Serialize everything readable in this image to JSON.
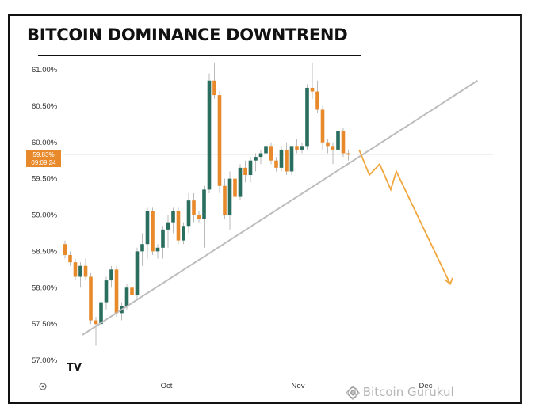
{
  "title": "BITCOIN DOMINANCE DOWNTREND",
  "watermark": "@ Bitcoin Gurukul",
  "logo": "TV",
  "price_badge": {
    "value": "59.83%",
    "countdown": "09:09:24"
  },
  "colors": {
    "up": "#2a6e5f",
    "down": "#e88a2b",
    "trendline": "#bdbdbd",
    "projection": "#f0a63c"
  },
  "chart_data": {
    "type": "candlestick",
    "y_ticks": [
      "61.00%",
      "60.50%",
      "60.00%",
      "59.50%",
      "59.00%",
      "58.50%",
      "58.00%",
      "57.50%",
      "57.00%"
    ],
    "y_tick_values": [
      61.0,
      60.5,
      60.0,
      59.5,
      59.0,
      58.5,
      58.0,
      57.5,
      57.0
    ],
    "x_ticks": [
      "Oct",
      "Nov",
      "Dec"
    ],
    "ylim": [
      56.9,
      61.15
    ],
    "candles": [
      [
        58.6,
        58.65,
        58.4,
        58.45
      ],
      [
        58.45,
        58.5,
        58.3,
        58.35
      ],
      [
        58.35,
        58.4,
        58.1,
        58.15
      ],
      [
        58.15,
        58.35,
        58.0,
        58.3
      ],
      [
        58.3,
        58.4,
        58.1,
        58.15
      ],
      [
        58.15,
        58.2,
        57.5,
        57.55
      ],
      [
        57.55,
        57.6,
        57.2,
        57.5
      ],
      [
        57.5,
        57.85,
        57.45,
        57.8
      ],
      [
        57.8,
        58.15,
        57.7,
        58.1
      ],
      [
        58.1,
        58.3,
        58.0,
        58.25
      ],
      [
        58.25,
        58.3,
        57.6,
        57.65
      ],
      [
        57.65,
        57.8,
        57.55,
        57.75
      ],
      [
        57.75,
        58.05,
        57.7,
        58.0
      ],
      [
        58.0,
        58.1,
        57.85,
        57.9
      ],
      [
        57.9,
        58.55,
        57.85,
        58.5
      ],
      [
        58.5,
        58.75,
        58.3,
        58.6
      ],
      [
        58.6,
        59.1,
        58.4,
        59.05
      ],
      [
        59.05,
        59.1,
        58.45,
        58.5
      ],
      [
        58.5,
        58.6,
        58.4,
        58.55
      ],
      [
        58.55,
        58.85,
        58.4,
        58.8
      ],
      [
        58.8,
        59.0,
        58.55,
        58.9
      ],
      [
        58.9,
        59.1,
        58.75,
        59.05
      ],
      [
        59.05,
        59.1,
        58.6,
        58.65
      ],
      [
        58.65,
        58.9,
        58.6,
        58.85
      ],
      [
        58.85,
        59.3,
        58.75,
        59.2
      ],
      [
        59.2,
        59.3,
        58.9,
        59.0
      ],
      [
        59.0,
        59.05,
        58.9,
        58.95
      ],
      [
        58.95,
        59.4,
        58.55,
        59.35
      ],
      [
        59.35,
        60.95,
        59.3,
        60.85
      ],
      [
        60.85,
        61.1,
        60.6,
        60.65
      ],
      [
        60.65,
        60.7,
        59.3,
        59.4
      ],
      [
        59.4,
        59.5,
        58.95,
        59.0
      ],
      [
        59.0,
        59.6,
        58.8,
        59.5
      ],
      [
        59.5,
        59.6,
        59.2,
        59.25
      ],
      [
        59.25,
        59.7,
        59.2,
        59.65
      ],
      [
        59.65,
        59.75,
        59.45,
        59.55
      ],
      [
        59.55,
        59.8,
        59.45,
        59.75
      ],
      [
        59.75,
        59.85,
        59.6,
        59.8
      ],
      [
        59.8,
        59.9,
        59.7,
        59.85
      ],
      [
        59.85,
        60.0,
        59.8,
        59.95
      ],
      [
        59.95,
        60.0,
        59.7,
        59.75
      ],
      [
        59.75,
        59.8,
        59.6,
        59.65
      ],
      [
        59.65,
        59.95,
        59.6,
        59.9
      ],
      [
        59.9,
        60.0,
        59.55,
        59.6
      ],
      [
        59.6,
        59.95,
        59.55,
        59.95
      ],
      [
        59.95,
        60.05,
        59.85,
        59.9
      ],
      [
        59.9,
        60.0,
        59.85,
        59.95
      ],
      [
        59.95,
        60.8,
        59.9,
        60.75
      ],
      [
        60.75,
        61.1,
        60.6,
        60.7
      ],
      [
        60.7,
        60.85,
        60.4,
        60.45
      ],
      [
        60.45,
        60.5,
        59.9,
        60.0
      ],
      [
        60.0,
        60.05,
        59.85,
        59.95
      ],
      [
        59.95,
        60.0,
        59.7,
        59.9
      ],
      [
        59.9,
        60.2,
        59.85,
        60.15
      ],
      [
        60.15,
        60.2,
        59.8,
        59.85
      ],
      [
        59.85,
        59.9,
        59.75,
        59.83
      ]
    ],
    "trendline": [
      [
        57.35,
        0
      ],
      [
        60.85,
        65
      ]
    ],
    "projection": [
      [
        59.9,
        59.4
      ],
      [
        59.55,
        59.7,
        59.35,
        59.6,
        58.05
      ]
    ]
  }
}
